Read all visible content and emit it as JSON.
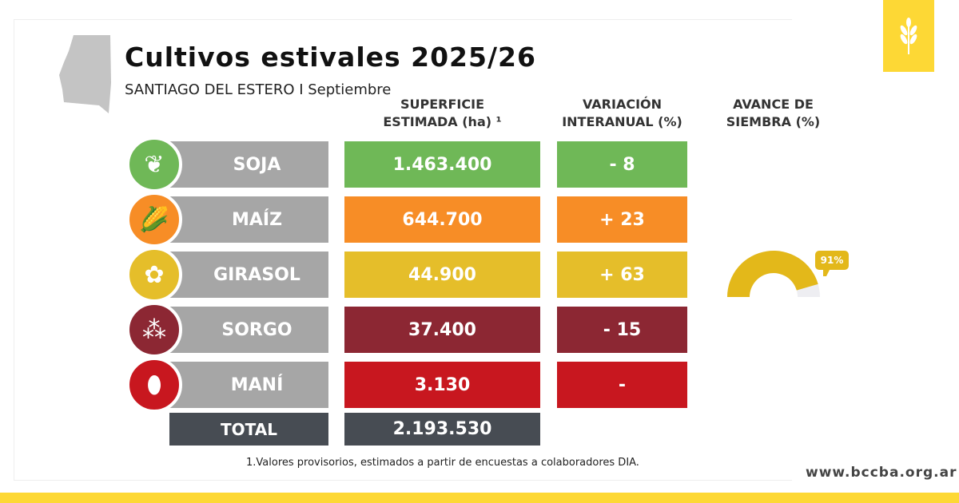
{
  "title": "Cultivos estivales 2025/26",
  "subtitle": "SANTIAGO DEL ESTERO I Septiembre",
  "headers": {
    "superficie": "SUPERFICIE ESTIMADA (ha) ¹",
    "variacion": "VARIACIÓN INTERANUAL (%)",
    "avance": "AVANCE DE SIEMBRA (%)"
  },
  "crops": [
    {
      "name": "SOJA",
      "superficie": "1.463.400",
      "variacion": "- 8",
      "color": "#6fb857",
      "icon": "soy-sprout-icon"
    },
    {
      "name": "MAÍZ",
      "superficie": "644.700",
      "variacion": "+ 23",
      "color": "#f78d26",
      "icon": "corn-icon"
    },
    {
      "name": "GIRASOL",
      "superficie": "44.900",
      "variacion": "+ 63",
      "color": "#e5be2a",
      "icon": "sunflower-icon"
    },
    {
      "name": "SORGO",
      "superficie": "37.400",
      "variacion": "- 15",
      "color": "#8c2733",
      "icon": "sorghum-icon"
    },
    {
      "name": "MANÍ",
      "superficie": "3.130",
      "variacion": "-",
      "color": "#c8171f",
      "icon": "peanut-icon"
    }
  ],
  "total": {
    "label": "TOTAL",
    "superficie": "2.193.530",
    "color": "#474c53"
  },
  "avance": {
    "crop": "GIRASOL",
    "value": 91,
    "label": "91%",
    "color": "#e3b81a",
    "track": "#eeeef2"
  },
  "footnote": "1.Valores provisorios, estimados a partir de encuestas a colaboradores DIA.",
  "website": "www.bccba.org.ar"
}
